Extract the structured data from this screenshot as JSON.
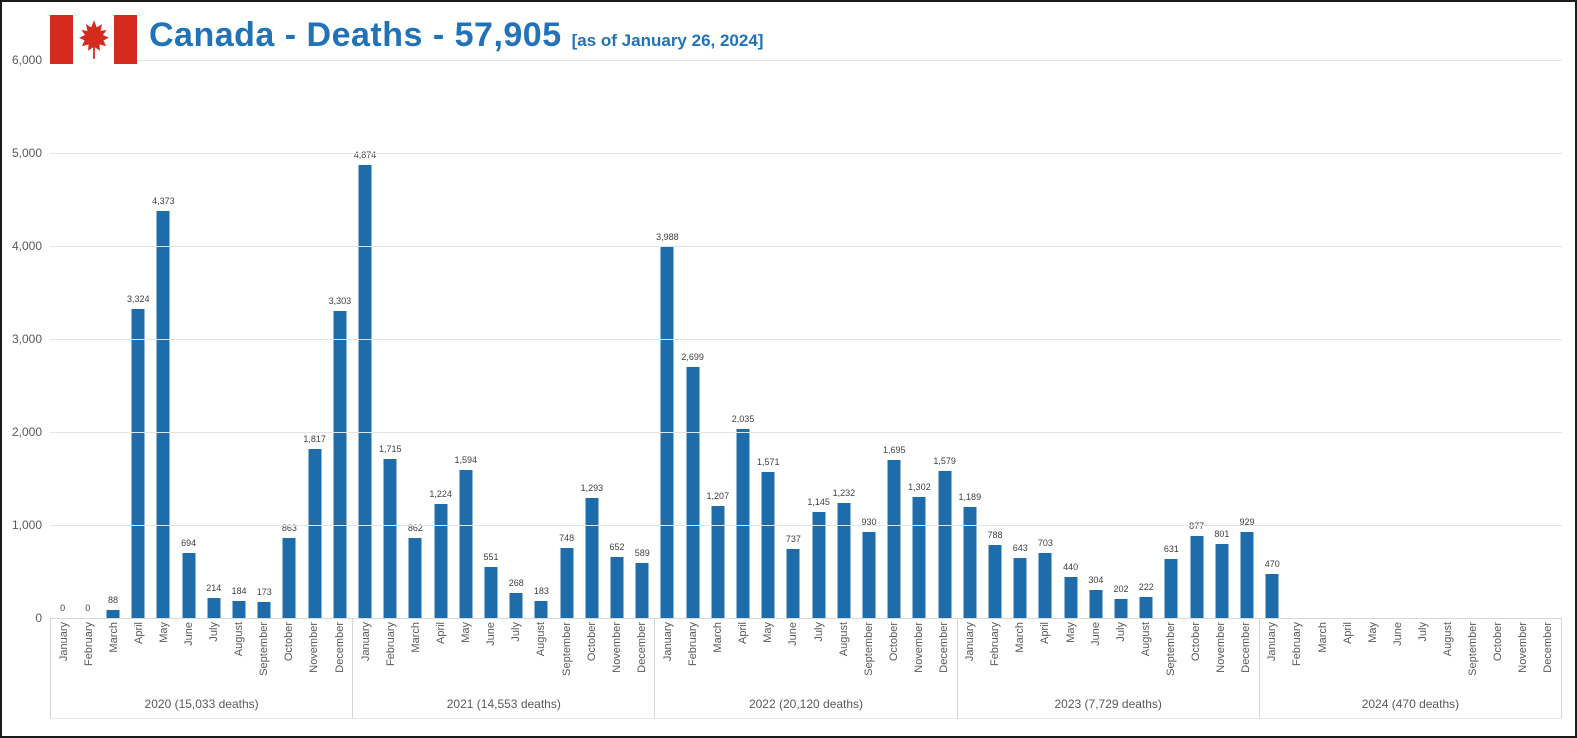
{
  "header": {
    "title": "Canada - Deaths - 57,905",
    "subtitle": "[as of January 26, 2024]"
  },
  "colors": {
    "bar": "#1f6cab",
    "title": "#2272b8",
    "flag_red": "#d52b1e",
    "gridline": "#e4e4e4",
    "axis_text": "#595959",
    "value_label": "#404040",
    "separator": "#d6d6d6"
  },
  "chart_data": {
    "type": "bar",
    "title": "Canada - Deaths - 57,905 [as of January 26, 2024]",
    "xlabel": "",
    "ylabel": "",
    "ylim": [
      0,
      6000
    ],
    "y_ticks": [
      0,
      1000,
      2000,
      3000,
      4000,
      5000,
      6000
    ],
    "grid": true,
    "legend": "none",
    "months": [
      "January",
      "February",
      "March",
      "April",
      "May",
      "June",
      "July",
      "August",
      "September",
      "October",
      "November",
      "December"
    ],
    "groups": [
      {
        "year": "2020",
        "label": "2020 (15,033 deaths)",
        "total": 15033,
        "values": [
          0,
          0,
          88,
          3324,
          4373,
          694,
          214,
          184,
          173,
          863,
          1817,
          3303
        ]
      },
      {
        "year": "2021",
        "label": "2021 (14,553 deaths)",
        "total": 14553,
        "values": [
          4874,
          1715,
          862,
          1224,
          1594,
          551,
          268,
          183,
          748,
          1293,
          652,
          589
        ]
      },
      {
        "year": "2022",
        "label": "2022 (20,120 deaths)",
        "total": 20120,
        "values": [
          3988,
          2699,
          1207,
          2035,
          1571,
          737,
          1145,
          1232,
          930,
          1695,
          1302,
          1579
        ]
      },
      {
        "year": "2023",
        "label": "2023 (7,729 deaths)",
        "total": 7729,
        "values": [
          1189,
          788,
          643,
          703,
          440,
          304,
          202,
          222,
          631,
          877,
          801,
          929
        ]
      },
      {
        "year": "2024",
        "label": "2024 (470 deaths)",
        "total": 470,
        "values": [
          470,
          null,
          null,
          null,
          null,
          null,
          null,
          null,
          null,
          null,
          null,
          null
        ]
      }
    ]
  }
}
